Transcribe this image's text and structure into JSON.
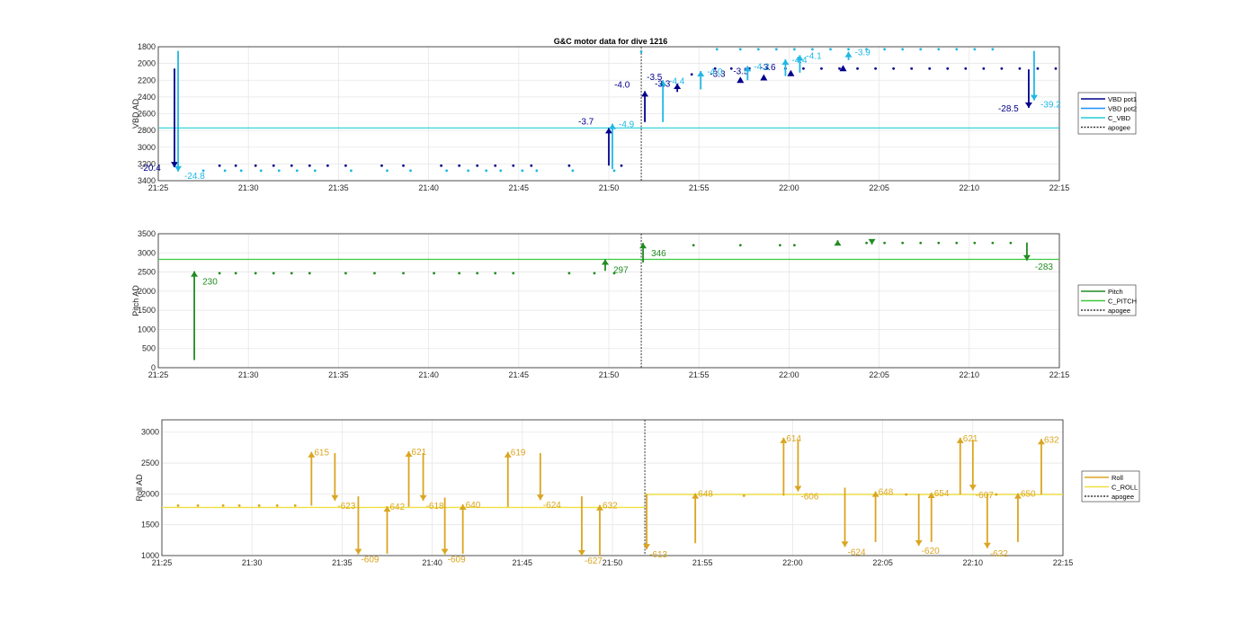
{
  "title": "G&C motor data for dive 1216",
  "x_ticks": [
    "21:25",
    "21:30",
    "21:35",
    "21:40",
    "21:45",
    "21:50",
    "21:55",
    "22:00",
    "22:05",
    "22:10",
    "22:15"
  ],
  "colors": {
    "vbd_pot1": "#00008b",
    "vbd_pot2": "#1e90ff",
    "vbd_label2": "#1fb8e6",
    "c_vbd": "#22cfd9",
    "pitch": "#228b22",
    "c_pitch": "#3cc83c",
    "roll": "#daa520",
    "c_roll": "#f0e040",
    "apogee": "#555555"
  },
  "chart_data": [
    {
      "id": "vbd",
      "type": "scatter",
      "ylabel": "VBD AD",
      "ylim": [
        1800,
        3400
      ],
      "y_reversed": true,
      "y_ticks": [
        1800,
        2000,
        2200,
        2400,
        2600,
        2800,
        3000,
        3200,
        3400
      ],
      "xlim_min": [
        0,
        50
      ],
      "apogee_min": 26.8,
      "c_vbd": 2770,
      "legend": [
        "VBD pot1",
        "VBD pot2",
        "C_VBD",
        "apogee"
      ],
      "pot1_points": [
        [
          0.9,
          3220
        ],
        [
          3.4,
          3220
        ],
        [
          4.3,
          3220
        ],
        [
          5.4,
          3220
        ],
        [
          6.4,
          3220
        ],
        [
          7.4,
          3220
        ],
        [
          8.4,
          3220
        ],
        [
          9.4,
          3220
        ],
        [
          10.4,
          3220
        ],
        [
          12.4,
          3220
        ],
        [
          13.6,
          3220
        ],
        [
          15.7,
          3220
        ],
        [
          16.7,
          3220
        ],
        [
          17.7,
          3220
        ],
        [
          18.7,
          3220
        ],
        [
          19.7,
          3220
        ],
        [
          20.7,
          3220
        ],
        [
          22.8,
          3220
        ],
        [
          25.7,
          3220
        ],
        [
          29.6,
          2130
        ],
        [
          30.9,
          2060
        ],
        [
          31.8,
          2060
        ],
        [
          32.8,
          2060
        ],
        [
          33.8,
          2060
        ],
        [
          34.8,
          2060
        ],
        [
          35.8,
          2060
        ],
        [
          36.8,
          2060
        ],
        [
          37.8,
          2060
        ],
        [
          38.8,
          2060
        ],
        [
          39.8,
          2060
        ],
        [
          40.8,
          2060
        ],
        [
          41.8,
          2060
        ],
        [
          42.8,
          2060
        ],
        [
          43.8,
          2060
        ],
        [
          44.8,
          2060
        ],
        [
          45.8,
          2060
        ],
        [
          46.8,
          2060
        ],
        [
          47.8,
          2060
        ],
        [
          48.8,
          2060
        ],
        [
          49.8,
          2060
        ]
      ],
      "pot2_points": [
        [
          2.5,
          3280
        ],
        [
          3.7,
          3280
        ],
        [
          4.6,
          3280
        ],
        [
          5.7,
          3280
        ],
        [
          6.7,
          3280
        ],
        [
          7.7,
          3280
        ],
        [
          8.7,
          3280
        ],
        [
          10.7,
          3280
        ],
        [
          12.7,
          3280
        ],
        [
          14.0,
          3280
        ],
        [
          16.0,
          3280
        ],
        [
          17.2,
          3280
        ],
        [
          18.2,
          3280
        ],
        [
          19.0,
          3280
        ],
        [
          20.2,
          3280
        ],
        [
          21.0,
          3280
        ],
        [
          23.0,
          3280
        ],
        [
          25.3,
          3280
        ],
        [
          26.8,
          1860
        ],
        [
          31.0,
          1830
        ],
        [
          32.3,
          1830
        ],
        [
          33.3,
          1830
        ],
        [
          34.3,
          1830
        ],
        [
          35.3,
          1830
        ],
        [
          36.3,
          1830
        ],
        [
          37.3,
          1830
        ],
        [
          38.3,
          1830
        ],
        [
          39.3,
          1830
        ],
        [
          40.3,
          1830
        ],
        [
          41.3,
          1830
        ],
        [
          42.3,
          1830
        ],
        [
          43.3,
          1830
        ],
        [
          44.3,
          1830
        ],
        [
          45.3,
          1830
        ],
        [
          46.3,
          1830
        ]
      ],
      "pot1_moves": [
        [
          0.9,
          2060,
          3240,
          "-20.4"
        ],
        [
          25.0,
          3220,
          2770,
          "-3.7"
        ],
        [
          27.0,
          2700,
          2330,
          "-4.0"
        ],
        [
          28.8,
          2340,
          2240,
          "-3.5"
        ],
        [
          32.3,
          2200,
          2200,
          "-3.3"
        ],
        [
          33.6,
          2170,
          2170,
          "-3.5"
        ],
        [
          35.1,
          2120,
          2120,
          "-3.6"
        ],
        [
          38.0,
          2060,
          2060,
          ""
        ],
        [
          48.3,
          2070,
          2530,
          "-28.5"
        ]
      ],
      "pot2_moves": [
        [
          1.1,
          1850,
          3290,
          "-24.8"
        ],
        [
          25.2,
          3260,
          2720,
          "-4.9"
        ],
        [
          28.0,
          2700,
          2200,
          "-4.4"
        ],
        [
          30.1,
          2310,
          2090,
          "-4.0"
        ],
        [
          32.7,
          2200,
          2030,
          "-4.2"
        ],
        [
          34.8,
          2150,
          1950,
          "-4.4"
        ],
        [
          35.6,
          2110,
          1900,
          "-4.1"
        ],
        [
          38.3,
          1960,
          1860,
          "-3.9"
        ],
        [
          48.6,
          1850,
          2440,
          "-39.2"
        ]
      ],
      "extra_labels": [
        [
          27.5,
          "-3.3"
        ]
      ]
    },
    {
      "id": "pitch",
      "type": "scatter",
      "ylabel": "Pitch AD",
      "ylim": [
        0,
        3500
      ],
      "y_reversed": false,
      "y_ticks": [
        0,
        500,
        1000,
        1500,
        2000,
        2500,
        3000,
        3500
      ],
      "xlim_min": [
        0,
        50
      ],
      "apogee_min": 26.8,
      "c_pitch": 2830,
      "legend": [
        "Pitch",
        "C_PITCH",
        "apogee"
      ],
      "points": [
        [
          3.4,
          2470
        ],
        [
          4.3,
          2470
        ],
        [
          5.4,
          2470
        ],
        [
          6.4,
          2470
        ],
        [
          7.4,
          2470
        ],
        [
          8.4,
          2470
        ],
        [
          10.4,
          2470
        ],
        [
          12.0,
          2470
        ],
        [
          13.6,
          2470
        ],
        [
          15.3,
          2470
        ],
        [
          16.7,
          2470
        ],
        [
          17.7,
          2470
        ],
        [
          18.7,
          2470
        ],
        [
          19.7,
          2470
        ],
        [
          22.8,
          2470
        ],
        [
          25.3,
          2470
        ],
        [
          24.2,
          2470
        ],
        [
          29.7,
          3200
        ],
        [
          32.3,
          3200
        ],
        [
          34.5,
          3200
        ],
        [
          35.3,
          3200
        ],
        [
          39.3,
          3260
        ],
        [
          40.3,
          3260
        ],
        [
          41.3,
          3260
        ],
        [
          42.3,
          3260
        ],
        [
          43.3,
          3260
        ],
        [
          44.3,
          3260
        ],
        [
          45.3,
          3260
        ],
        [
          46.3,
          3260
        ],
        [
          47.3,
          3260
        ]
      ],
      "moves": [
        [
          2.0,
          200,
          2520,
          "230"
        ],
        [
          24.8,
          2530,
          2830,
          "297"
        ],
        [
          26.9,
          2750,
          3260,
          "346"
        ],
        [
          37.7,
          3260,
          3330,
          ""
        ],
        [
          39.6,
          3300,
          3220,
          ""
        ],
        [
          48.2,
          3270,
          2800,
          "-283"
        ]
      ]
    },
    {
      "id": "roll",
      "type": "scatter",
      "ylabel": "Roll AD",
      "ylim": [
        1000,
        3200
      ],
      "y_reversed": false,
      "y_ticks": [
        1000,
        1500,
        2000,
        2500,
        3000
      ],
      "xlim_min": [
        0,
        50
      ],
      "apogee_min": 26.8,
      "c_roll_segments": [
        [
          0,
          26.8,
          1780
        ],
        [
          26.8,
          50,
          1990
        ]
      ],
      "legend": [
        "Roll",
        "C_ROLL",
        "apogee"
      ],
      "points": [
        [
          0.9,
          1810
        ],
        [
          2.0,
          1810
        ],
        [
          3.4,
          1810
        ],
        [
          4.3,
          1810
        ],
        [
          5.4,
          1810
        ],
        [
          6.4,
          1810
        ],
        [
          7.4,
          1810
        ],
        [
          32.3,
          1970
        ],
        [
          41.3,
          1990
        ],
        [
          46.3,
          1990
        ]
      ],
      "moves": [
        [
          8.3,
          1810,
          2680,
          "615"
        ],
        [
          9.6,
          2660,
          1890,
          "-623"
        ],
        [
          10.9,
          1960,
          1020,
          "-609"
        ],
        [
          12.5,
          1030,
          1800,
          "642"
        ],
        [
          13.7,
          1790,
          2690,
          "621"
        ],
        [
          14.5,
          2660,
          1890,
          "-618"
        ],
        [
          15.7,
          1940,
          1020,
          "-609"
        ],
        [
          16.7,
          1030,
          1830,
          "640"
        ],
        [
          19.2,
          1790,
          2680,
          "619"
        ],
        [
          21.0,
          2660,
          1900,
          "-624"
        ],
        [
          23.3,
          1960,
          1000,
          "-627"
        ],
        [
          24.3,
          1000,
          1820,
          "632"
        ],
        [
          26.9,
          2000,
          1100,
          "-613"
        ],
        [
          29.6,
          1200,
          2010,
          "648"
        ],
        [
          34.5,
          1970,
          2910,
          "614"
        ],
        [
          35.3,
          2880,
          2040,
          "-606"
        ],
        [
          37.9,
          2100,
          1140,
          "-624"
        ],
        [
          39.6,
          1220,
          2040,
          "648"
        ],
        [
          42.0,
          2000,
          1160,
          "-620"
        ],
        [
          42.7,
          1220,
          2020,
          "654"
        ],
        [
          44.3,
          1990,
          2910,
          "621"
        ],
        [
          45.0,
          2880,
          2060,
          "-607"
        ],
        [
          45.8,
          2000,
          1120,
          "-632"
        ],
        [
          47.5,
          1220,
          2010,
          "650"
        ],
        [
          48.8,
          1990,
          2890,
          "632"
        ]
      ]
    }
  ]
}
